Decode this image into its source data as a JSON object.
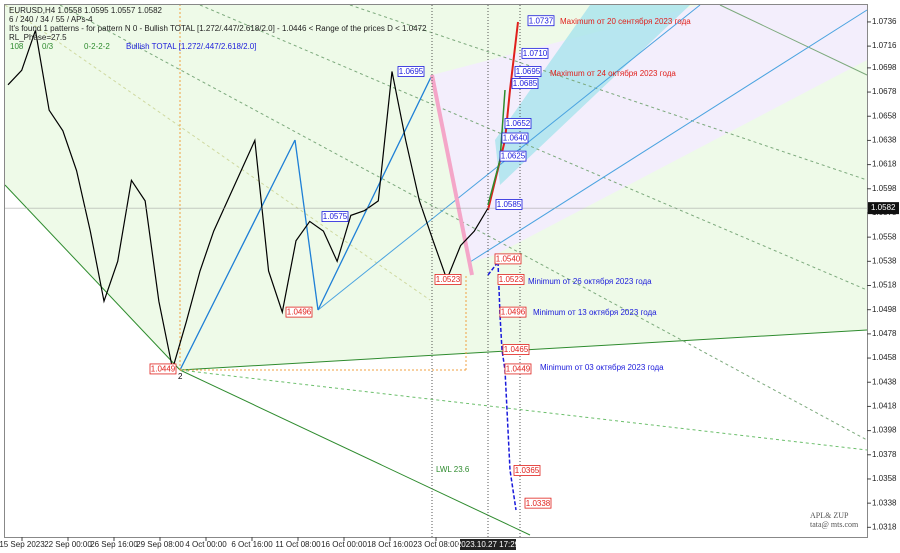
{
  "chart_data": {
    "type": "line",
    "header": [
      "EURUSD,H4  1.0558 1.0595 1.0557 1.0582",
      "6 / 240 / 34 / 55 / APs-4",
      "It's found 1 patterns  - for pattern N 0 - Bullish TOTAL [1.272/.447/2.618/2.0] - 1.0446 < Range of the prices D < 1.0472",
      "RL_Phase=27.5"
    ],
    "status": [
      "108",
      "0/3",
      "0-2-2-2",
      "Bullish TOTAL [1.272/.447/2.618/2.0]"
    ],
    "series": [
      {
        "name": "EURUSD",
        "color": "#000000",
        "values": [
          1.0684,
          1.0696,
          1.0729,
          1.0663,
          1.0646,
          1.0613,
          1.0563,
          1.0505,
          1.0538,
          1.0605,
          1.0588,
          1.0505,
          1.0449,
          1.0488,
          1.053,
          1.0563,
          1.0588,
          1.0613,
          1.0638,
          1.053,
          1.0496,
          1.0555,
          1.0571,
          1.0563,
          1.0538,
          1.0576,
          1.058,
          1.0588,
          1.0695,
          1.0638,
          1.0588,
          1.0555,
          1.0523,
          1.0551,
          1.0563,
          1.0582
        ]
      }
    ],
    "current": {
      "value": 1.0582,
      "label": "1.0582"
    },
    "ylim": [
      1.031,
      1.075
    ],
    "yticks": [
      1.0736,
      1.0716,
      1.0698,
      1.0678,
      1.0658,
      1.0638,
      1.0618,
      1.0598,
      1.0578,
      1.0558,
      1.0538,
      1.0518,
      1.0498,
      1.0478,
      1.0458,
      1.0438,
      1.0418,
      1.0398,
      1.0378,
      1.0358,
      1.0338,
      1.0318
    ],
    "xticks": [
      "15 Sep 2023",
      "22 Sep 00:00",
      "26 Sep 16:00",
      "29 Sep 08:00",
      "4 Oct 00:00",
      "6 Oct 16:00",
      "11 Oct 08:00",
      "16 Oct 00:00",
      "18 Oct 16:00",
      "23 Oct 08:00"
    ],
    "cursor_time": "2023.10.27 17:29",
    "levels": [
      {
        "value": 1.0737,
        "label": "1.0737",
        "color": "#1a1adb"
      },
      {
        "value": 1.071,
        "label": "1.0710",
        "color": "#1a1adb"
      },
      {
        "value": 1.0695,
        "label": "1.0695",
        "color": "#1a1adb"
      },
      {
        "value": 1.0685,
        "label": "1.0685",
        "color": "#1a1adb"
      },
      {
        "value": 1.0652,
        "label": "1.0652",
        "color": "#1a1adb"
      },
      {
        "value": 1.064,
        "label": "1.0640",
        "color": "#1a1adb"
      },
      {
        "value": 1.0625,
        "label": "1.0625",
        "color": "#1a1adb"
      },
      {
        "value": 1.0585,
        "label": "1.0585",
        "color": "#1a1adb"
      },
      {
        "value": 1.054,
        "label": "1.0540",
        "color": "#e0201c"
      },
      {
        "value": 1.0523,
        "label": "1.0523",
        "color": "#e0201c"
      },
      {
        "value": 1.0496,
        "label": "1.0496",
        "color": "#e0201c"
      },
      {
        "value": 1.0465,
        "label": "1.0465",
        "color": "#e0201c"
      },
      {
        "value": 1.0449,
        "label": "1.0449",
        "color": "#e0201c"
      },
      {
        "value": 1.0365,
        "label": "1.0365",
        "color": "#e0201c"
      },
      {
        "value": 1.0338,
        "label": "1.0338",
        "color": "#e0201c"
      },
      {
        "value": 1.0695,
        "label": "1.0695",
        "color": "#1a1adb"
      },
      {
        "value": 1.0575,
        "label": "1.0575",
        "color": "#1a1adb"
      },
      {
        "value": 1.0496,
        "label": "1.0496",
        "color": "#e0201c"
      },
      {
        "value": 1.0449,
        "label": "1.0449",
        "color": "#e0201c"
      },
      {
        "value": 1.0523,
        "label": "1.0523",
        "color": "#e0201c"
      }
    ],
    "annotations": [
      {
        "text": "Maximum от 20 сентября 2023  года",
        "color": "#e0201c"
      },
      {
        "text": "Maximum от 24 октября 2023  года",
        "color": "#e0201c"
      },
      {
        "text": "Minimum от 26 октября 2023 года",
        "color": "#1a1adb"
      },
      {
        "text": "Minimum  от 13 октября 2023  года",
        "color": "#1a1adb"
      },
      {
        "text": "Minimum от  03 октября 2023  года",
        "color": "#1a1adb"
      },
      {
        "text": "LWL 23.6",
        "color": "#2e8b2e"
      },
      {
        "text": "2",
        "color": "#000000"
      }
    ],
    "watermark": [
      "APL& ZUP",
      "tata@ mts.com"
    ]
  }
}
